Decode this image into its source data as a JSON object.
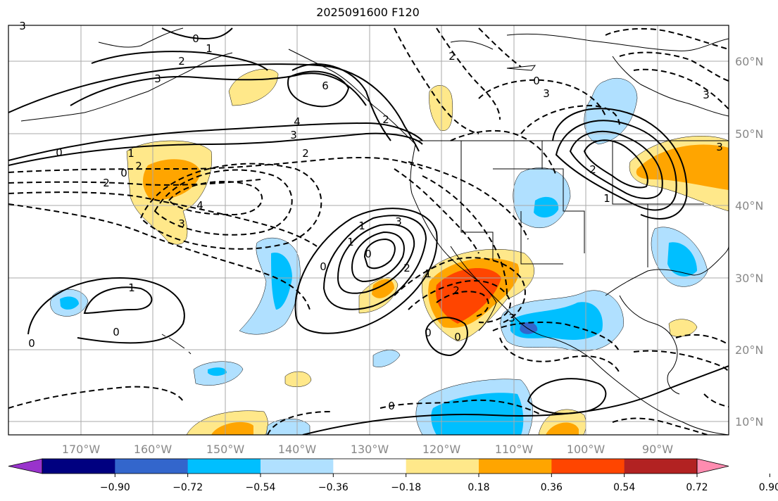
{
  "title": "2025091600 F120",
  "map": {
    "lon_labels": [
      "170°W",
      "160°W",
      "150°W",
      "140°W",
      "130°W",
      "120°W",
      "110°W",
      "100°W",
      "90°W"
    ],
    "lat_labels": [
      "60°N",
      "50°N",
      "40°N",
      "30°N",
      "20°N",
      "10°N"
    ],
    "contour_labels": [
      "3",
      "0",
      "1",
      "2",
      "3",
      "6",
      "4",
      "3",
      "2",
      "0",
      "2",
      "1",
      "2",
      "0",
      "4",
      "3",
      "3",
      "2",
      "1",
      "0",
      "0",
      "1",
      "2",
      "2",
      "3",
      "0",
      "3",
      "1",
      "0",
      "0",
      "1",
      "0",
      "3",
      "2",
      "0",
      "1",
      "2",
      "3",
      "0"
    ]
  },
  "colorbar": {
    "ticks": [
      "−0.90",
      "−0.72",
      "−0.54",
      "−0.36",
      "−0.18",
      "0.18",
      "0.36",
      "0.54",
      "0.72",
      "0.90"
    ],
    "colors": [
      "#9933cc",
      "#000080",
      "#3366cc",
      "#00bfff",
      "#b0e0ff",
      "#ffffff",
      "#ffe88a",
      "#ffa500",
      "#ff4500",
      "#b22222",
      "#ff8cb0"
    ]
  }
}
